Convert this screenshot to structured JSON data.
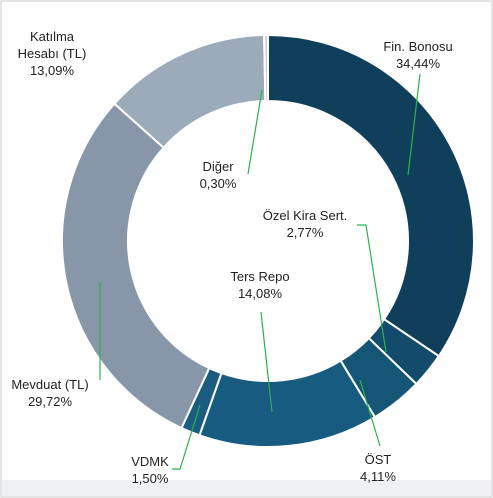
{
  "chart_data": {
    "type": "donut",
    "categories": [
      "Fin. Bonosu",
      "Özel Kira Sert.",
      "ÖST",
      "Ters Repo",
      "VDMK",
      "Mevduat (TL)",
      "Katılma Hesabı (TL)",
      "Diğer"
    ],
    "values": [
      34.44,
      2.77,
      4.11,
      14.08,
      1.5,
      29.72,
      13.09,
      0.3
    ],
    "value_labels": [
      "34,44%",
      "2,77%",
      "4,11%",
      "14,08%",
      "1,50%",
      "29,72%",
      "13,09%",
      "0,30%"
    ],
    "colors": [
      "#0f3f5a",
      "#124b6b",
      "#155676",
      "#175b80",
      "#1b5d80",
      "#8797a9",
      "#9cabba",
      "#c9d2db"
    ]
  }
}
